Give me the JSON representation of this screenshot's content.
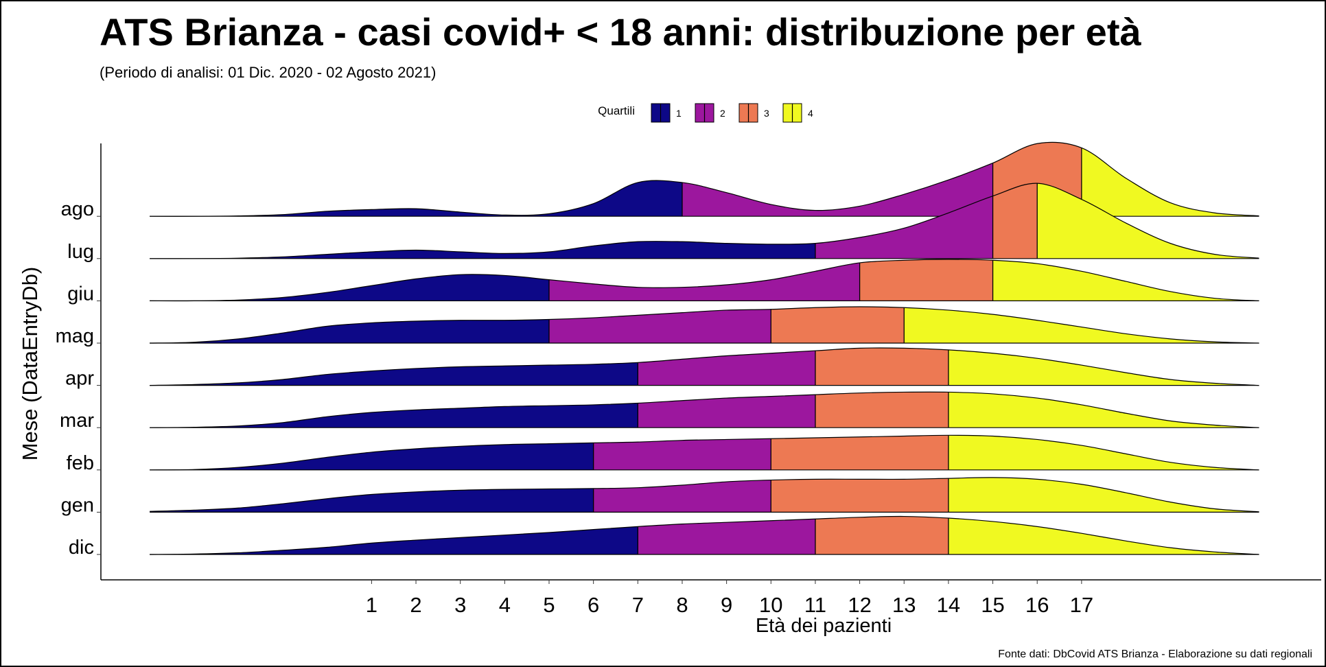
{
  "chart_data": {
    "type": "ridgeline",
    "title": "ATS Brianza - casi covid+ < 18 anni: distribuzione per età",
    "subtitle": "(Periodo di analisi: 01 Dic. 2020 - 02 Agosto 2021)",
    "x_label": "Età dei pazienti",
    "y_label": "Mese (DataEntryDb)",
    "caption": "Fonte dati: DbCovid ATS Brianza - Elaborazione su dati regionali",
    "legend": {
      "title": "Quartili",
      "labels": [
        "1",
        "2",
        "3",
        "4"
      ],
      "colors": [
        "#0d0887",
        "#9c179e",
        "#ed7953",
        "#f0f921"
      ]
    },
    "categories": [
      "dic",
      "gen",
      "feb",
      "mar",
      "apr",
      "mag",
      "giu",
      "lug",
      "ago"
    ],
    "x": [
      -4,
      -3,
      -2,
      -1,
      0,
      1,
      2,
      3,
      4,
      5,
      6,
      7,
      8,
      9,
      10,
      11,
      12,
      13,
      14,
      15,
      16,
      17,
      18,
      19,
      20,
      21
    ],
    "densities": [
      [
        0,
        0.01,
        0.04,
        0.1,
        0.17,
        0.27,
        0.34,
        0.4,
        0.46,
        0.52,
        0.59,
        0.66,
        0.72,
        0.76,
        0.8,
        0.84,
        0.88,
        0.9,
        0.86,
        0.78,
        0.66,
        0.5,
        0.32,
        0.16,
        0.06,
        0
      ],
      [
        0.02,
        0.05,
        0.1,
        0.2,
        0.32,
        0.42,
        0.48,
        0.52,
        0.54,
        0.55,
        0.56,
        0.58,
        0.64,
        0.72,
        0.76,
        0.78,
        0.78,
        0.78,
        0.8,
        0.82,
        0.78,
        0.66,
        0.46,
        0.24,
        0.08,
        0.01
      ],
      [
        0,
        0.01,
        0.06,
        0.16,
        0.3,
        0.42,
        0.5,
        0.56,
        0.6,
        0.62,
        0.64,
        0.66,
        0.7,
        0.72,
        0.74,
        0.76,
        0.78,
        0.8,
        0.82,
        0.8,
        0.72,
        0.58,
        0.38,
        0.18,
        0.06,
        0
      ],
      [
        0,
        0.01,
        0.04,
        0.12,
        0.26,
        0.36,
        0.42,
        0.46,
        0.5,
        0.52,
        0.54,
        0.58,
        0.64,
        0.7,
        0.74,
        0.78,
        0.82,
        0.84,
        0.84,
        0.8,
        0.7,
        0.54,
        0.34,
        0.16,
        0.06,
        0
      ],
      [
        0,
        0.02,
        0.06,
        0.14,
        0.26,
        0.34,
        0.4,
        0.44,
        0.46,
        0.48,
        0.5,
        0.54,
        0.62,
        0.7,
        0.76,
        0.82,
        0.88,
        0.88,
        0.84,
        0.76,
        0.64,
        0.48,
        0.3,
        0.14,
        0.05,
        0
      ],
      [
        0,
        0.02,
        0.1,
        0.24,
        0.4,
        0.48,
        0.52,
        0.54,
        0.54,
        0.56,
        0.6,
        0.66,
        0.72,
        0.78,
        0.8,
        0.84,
        0.86,
        0.84,
        0.78,
        0.68,
        0.54,
        0.38,
        0.22,
        0.1,
        0.03,
        0
      ],
      [
        0,
        0,
        0.02,
        0.08,
        0.2,
        0.36,
        0.52,
        0.62,
        0.6,
        0.5,
        0.4,
        0.32,
        0.32,
        0.38,
        0.5,
        0.7,
        0.9,
        0.96,
        0.98,
        0.96,
        0.88,
        0.7,
        0.46,
        0.22,
        0.06,
        0
      ],
      [
        0,
        0,
        0.01,
        0.04,
        0.1,
        0.16,
        0.2,
        0.16,
        0.12,
        0.16,
        0.3,
        0.4,
        0.4,
        0.36,
        0.34,
        0.36,
        0.5,
        0.72,
        1.08,
        1.48,
        1.78,
        1.4,
        0.84,
        0.36,
        0.1,
        0.01
      ],
      [
        0,
        0,
        0.01,
        0.04,
        0.12,
        0.16,
        0.18,
        0.1,
        0.03,
        0.06,
        0.3,
        0.8,
        0.8,
        0.56,
        0.28,
        0.14,
        0.24,
        0.52,
        0.86,
        1.26,
        1.72,
        1.62,
        0.9,
        0.32,
        0.08,
        0.01
      ]
    ],
    "quartiles": [
      [
        7,
        11,
        14
      ],
      [
        6,
        10,
        14
      ],
      [
        6,
        10,
        14
      ],
      [
        7,
        11,
        14
      ],
      [
        7,
        11,
        14
      ],
      [
        5,
        10,
        13
      ],
      [
        5,
        12,
        15
      ],
      [
        11,
        15,
        16
      ],
      [
        8,
        15,
        17
      ]
    ],
    "xlim": [
      -5.1,
      22.4
    ],
    "xticks": [
      1,
      2,
      3,
      4,
      5,
      6,
      7,
      8,
      9,
      10,
      11,
      12,
      13,
      14,
      15,
      16,
      17
    ]
  }
}
